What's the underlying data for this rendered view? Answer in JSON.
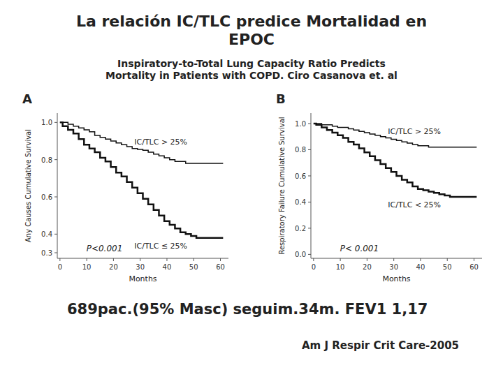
{
  "title": "La relación IC/TLC predice Mortalidad en\nEPOC",
  "subtitle": "Inspiratory-to-Total Lung Capacity Ratio Predicts\nMortality in Patients with COPD. Ciro Casanova et. al",
  "annotations": [
    "689pac.(95% Masc) seguim.34m. FEV1 1,17",
    "Am J Respir Crit Care-2005"
  ],
  "chart_data": [
    {
      "type": "step",
      "title": "A",
      "x_label": "Months",
      "y_label": "Any Causes Cumulative Survival",
      "x": [
        0,
        1,
        3,
        5,
        7,
        9,
        11,
        13,
        15,
        17,
        19,
        21,
        23,
        25,
        27,
        29,
        31,
        33,
        35,
        37,
        39,
        41,
        43,
        45,
        47,
        49,
        51,
        53,
        55,
        57,
        59,
        61
      ],
      "xlim": [
        -1,
        63
      ],
      "xticks": [
        0,
        10,
        20,
        30,
        40,
        50,
        60
      ],
      "ylim": [
        0.27,
        1.05
      ],
      "yticks": [
        0.3,
        0.4,
        0.6,
        0.8,
        {
          "value": 1.0,
          "label": "1.0"
        }
      ],
      "grid": false,
      "series": [
        {
          "name": "IC/TLC > 25%",
          "color": "#111111",
          "values": [
            1.0,
            1.0,
            0.99,
            0.98,
            0.97,
            0.96,
            0.95,
            0.93,
            0.92,
            0.91,
            0.9,
            0.89,
            0.88,
            0.87,
            0.86,
            0.855,
            0.85,
            0.84,
            0.83,
            0.82,
            0.81,
            0.8,
            0.79,
            0.79,
            0.78,
            0.78,
            0.78,
            0.78,
            0.78,
            0.78,
            0.78,
            0.78
          ]
        },
        {
          "name": "IC/TLC ≤ 25%",
          "color": "#111111",
          "values": [
            1.0,
            0.98,
            0.96,
            0.94,
            0.91,
            0.88,
            0.86,
            0.84,
            0.81,
            0.79,
            0.76,
            0.73,
            0.71,
            0.68,
            0.65,
            0.62,
            0.59,
            0.56,
            0.53,
            0.5,
            0.47,
            0.45,
            0.43,
            0.41,
            0.4,
            0.39,
            0.38,
            0.38,
            0.38,
            0.38,
            0.38,
            0.38
          ]
        }
      ],
      "annotations": [
        "P<0.001"
      ]
    },
    {
      "type": "step",
      "title": "B",
      "x_label": "Months",
      "y_label": "Respiratory Failure Cumulative Survival",
      "x": [
        0,
        1,
        3,
        5,
        7,
        9,
        11,
        13,
        15,
        17,
        19,
        21,
        23,
        25,
        27,
        29,
        31,
        33,
        35,
        37,
        39,
        41,
        43,
        45,
        47,
        49,
        51,
        53,
        55,
        57,
        59,
        61
      ],
      "xlim": [
        -1,
        63
      ],
      "xticks": [
        0,
        10,
        20,
        30,
        40,
        50,
        60
      ],
      "ylim": [
        -0.03,
        1.08
      ],
      "yticks": [
        {
          "value": 0.0,
          "label": "0.0"
        },
        0.2,
        0.4,
        0.6,
        0.8,
        {
          "value": 1.0,
          "label": "1.0"
        }
      ],
      "grid": false,
      "series": [
        {
          "name": "IC/TLC > 25%",
          "color": "#111111",
          "values": [
            1.0,
            1.0,
            0.99,
            0.99,
            0.98,
            0.97,
            0.97,
            0.96,
            0.95,
            0.94,
            0.93,
            0.92,
            0.91,
            0.9,
            0.89,
            0.88,
            0.87,
            0.86,
            0.85,
            0.84,
            0.83,
            0.83,
            0.82,
            0.82,
            0.82,
            0.82,
            0.82,
            0.82,
            0.82,
            0.82,
            0.82,
            0.82
          ]
        },
        {
          "name": "IC/TLC < 25%",
          "color": "#111111",
          "values": [
            1.0,
            0.99,
            0.97,
            0.95,
            0.93,
            0.91,
            0.89,
            0.86,
            0.84,
            0.81,
            0.78,
            0.75,
            0.72,
            0.69,
            0.66,
            0.63,
            0.6,
            0.57,
            0.55,
            0.52,
            0.5,
            0.49,
            0.48,
            0.47,
            0.46,
            0.45,
            0.44,
            0.44,
            0.44,
            0.44,
            0.44,
            0.44
          ]
        }
      ],
      "annotations": [
        "P< 0.001"
      ]
    }
  ]
}
